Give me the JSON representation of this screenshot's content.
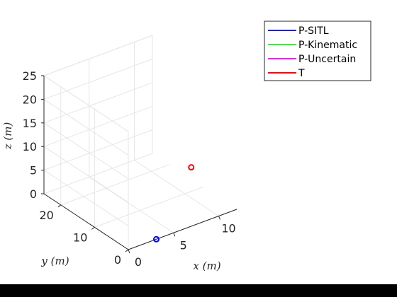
{
  "chart_data": {
    "type": "scatter",
    "view": "3d",
    "xlabel": "x (m)",
    "ylabel": "y (m)",
    "zlabel": "z (m)",
    "xlim": [
      0,
      12
    ],
    "ylim": [
      0,
      25
    ],
    "zlim": [
      0,
      25
    ],
    "xticks": [
      "0",
      "5",
      "10"
    ],
    "yticks": [
      "0",
      "10",
      "20"
    ],
    "zticks": [
      "0",
      "5",
      "10",
      "15",
      "20",
      "25"
    ],
    "grid": true,
    "legend": {
      "placement": "top-right, outside",
      "entries": [
        {
          "name": "P-SITL",
          "color": "#0000ff"
        },
        {
          "name": "P-Kinematic",
          "color": "#00ff00"
        },
        {
          "name": "P-Uncertain",
          "color": "#ff00ff"
        },
        {
          "name": "T",
          "color": "#ff0000"
        }
      ]
    },
    "series": [
      {
        "name": "P-SITL",
        "color": "#0000ff",
        "points": [
          {
            "x": 3.1,
            "y": 0,
            "z": 0
          }
        ]
      },
      {
        "name": "P-Kinematic",
        "color": "#00ff00",
        "points": []
      },
      {
        "name": "P-Uncertain",
        "color": "#ff00ff",
        "points": []
      },
      {
        "name": "T",
        "color": "#ff0000",
        "points": [
          {
            "x": 12,
            "y": 13.5,
            "z": 2.5
          }
        ]
      }
    ]
  }
}
